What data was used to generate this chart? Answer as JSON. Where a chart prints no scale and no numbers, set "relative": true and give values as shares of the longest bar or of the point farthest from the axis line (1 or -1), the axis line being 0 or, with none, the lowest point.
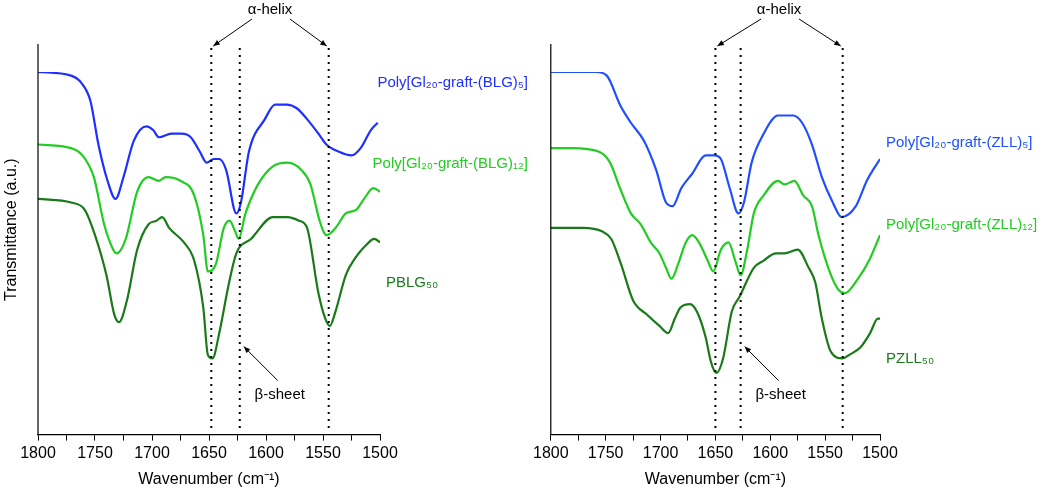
{
  "chart_data": [
    {
      "type": "line",
      "xlabel": "Wavenumber (cm⁻¹)",
      "ylabel": "Transmittance (a.u.)",
      "relative": true,
      "xlim": [
        1800,
        1500
      ],
      "xticks": [
        1800,
        {
          "value": 1775,
          "label": null
        },
        1750,
        {
          "value": 1725,
          "label": null
        },
        1700,
        {
          "value": 1675,
          "label": null
        },
        1650,
        {
          "value": 1625,
          "label": null
        },
        1600,
        {
          "value": 1575,
          "label": null
        },
        1550,
        {
          "value": 1525,
          "label": null
        },
        1500
      ],
      "grid": false,
      "legend": false,
      "marker": "none",
      "line_style": "solid",
      "tick_labels": "x",
      "ref_lines": [
        {
          "axis": "x",
          "value": 1648,
          "line_style": "dotted"
        },
        {
          "axis": "x",
          "value": 1623,
          "line_style": "dotted"
        },
        {
          "axis": "x",
          "value": 1545,
          "line_style": "dotted"
        }
      ],
      "annotations": [
        "α-helix",
        "β-sheet"
      ],
      "series": [
        {
          "name": "Poly[Gl₂₀-graft-(BLG)₅]",
          "color": "#1f2fff",
          "x": [
            1800,
            1771,
            1762,
            1754,
            1747,
            1739,
            1732,
            1725,
            1716,
            1705,
            1699,
            1694,
            1683,
            1674,
            1666,
            1658,
            1652,
            1646,
            1641,
            1635,
            1626,
            1622,
            1615,
            1601,
            1592,
            1582,
            1573,
            1564,
            1554,
            1547,
            1536,
            1525,
            1517,
            1508,
            1502
          ],
          "values": [
            1.0,
            0.99,
            0.97,
            0.92,
            0.8,
            0.7,
            0.65,
            0.71,
            0.81,
            0.85,
            0.84,
            0.82,
            0.83,
            0.83,
            0.82,
            0.78,
            0.75,
            0.76,
            0.76,
            0.73,
            0.61,
            0.64,
            0.78,
            0.87,
            0.91,
            0.91,
            0.9,
            0.87,
            0.83,
            0.8,
            0.78,
            0.77,
            0.79,
            0.84,
            0.86
          ]
        },
        {
          "name": "Poly[Gl₂₀-graft-(BLG)₁₂]",
          "color": "#22cc22",
          "x": [
            1800,
            1771,
            1761,
            1751,
            1742,
            1734,
            1731,
            1723,
            1713,
            1703,
            1694,
            1688,
            1675,
            1663,
            1655,
            1651,
            1644,
            1637,
            1632,
            1627,
            1624,
            1618,
            1607,
            1594,
            1581,
            1569,
            1561,
            1553,
            1547,
            1539,
            1530,
            1521,
            1514,
            1506,
            1500
          ],
          "values": [
            0.8,
            0.79,
            0.77,
            0.71,
            0.58,
            0.51,
            0.5,
            0.54,
            0.67,
            0.71,
            0.7,
            0.71,
            0.7,
            0.66,
            0.55,
            0.45,
            0.47,
            0.57,
            0.59,
            0.56,
            0.54,
            0.61,
            0.69,
            0.74,
            0.75,
            0.73,
            0.69,
            0.59,
            0.55,
            0.57,
            0.61,
            0.62,
            0.65,
            0.68,
            0.67
          ]
        },
        {
          "name": "PBLG₅₀",
          "color": "#1a7a1a",
          "x": [
            1800,
            1771,
            1759,
            1750,
            1740,
            1733,
            1729,
            1722,
            1713,
            1703,
            1696,
            1691,
            1685,
            1672,
            1663,
            1655,
            1651,
            1647,
            1641,
            1633,
            1626,
            1613,
            1594,
            1581,
            1571,
            1564,
            1554,
            1548,
            1544,
            1539,
            1530,
            1521,
            1513,
            1505,
            1500
          ],
          "values": [
            0.65,
            0.64,
            0.62,
            0.55,
            0.44,
            0.33,
            0.31,
            0.37,
            0.51,
            0.58,
            0.59,
            0.6,
            0.57,
            0.53,
            0.48,
            0.35,
            0.22,
            0.21,
            0.28,
            0.41,
            0.5,
            0.54,
            0.6,
            0.6,
            0.59,
            0.57,
            0.39,
            0.32,
            0.3,
            0.34,
            0.44,
            0.49,
            0.52,
            0.54,
            0.53
          ]
        }
      ]
    },
    {
      "type": "line",
      "xlabel": "Wavenumber (cm⁻¹)",
      "relative": true,
      "xlim": [
        1800,
        1500
      ],
      "xticks": [
        1800,
        {
          "value": 1775,
          "label": null
        },
        1750,
        {
          "value": 1725,
          "label": null
        },
        1700,
        {
          "value": 1675,
          "label": null
        },
        1650,
        {
          "value": 1625,
          "label": null
        },
        1600,
        {
          "value": 1575,
          "label": null
        },
        1550,
        {
          "value": 1525,
          "label": null
        },
        1500
      ],
      "grid": false,
      "legend": false,
      "marker": "none",
      "line_style": "solid",
      "tick_labels": "x",
      "ref_lines": [
        {
          "axis": "x",
          "value": 1650,
          "line_style": "dotted"
        },
        {
          "axis": "x",
          "value": 1627,
          "line_style": "dotted"
        },
        {
          "axis": "x",
          "value": 1534,
          "line_style": "dotted"
        }
      ],
      "annotations": [
        "α-helix",
        "β-sheet"
      ],
      "series": [
        {
          "name": "Poly[Gl₂₀-graft-(ZLL)₅]",
          "color": "#1f4fff",
          "x": [
            1800,
            1781,
            1759,
            1749,
            1737,
            1727,
            1715,
            1704,
            1695,
            1689,
            1681,
            1671,
            1659,
            1651,
            1645,
            1637,
            1629,
            1624,
            1617,
            1606,
            1593,
            1579,
            1571,
            1562,
            1553,
            1543,
            1535,
            1522,
            1512,
            1500
          ],
          "values": [
            1.0,
            1.0,
            1.0,
            0.99,
            0.91,
            0.86,
            0.81,
            0.73,
            0.64,
            0.63,
            0.68,
            0.72,
            0.77,
            0.77,
            0.76,
            0.68,
            0.61,
            0.64,
            0.75,
            0.83,
            0.88,
            0.88,
            0.86,
            0.8,
            0.71,
            0.64,
            0.6,
            0.63,
            0.7,
            0.76
          ]
        },
        {
          "name": "Poly[Gl₂₀-graft-(ZLL)₁₂]",
          "color": "#22cc22",
          "x": [
            1800,
            1781,
            1756,
            1746,
            1737,
            1727,
            1718,
            1709,
            1701,
            1695,
            1690,
            1684,
            1677,
            1671,
            1665,
            1657,
            1652,
            1645,
            1638,
            1632,
            1627,
            1621,
            1615,
            1606,
            1593,
            1587,
            1578,
            1570,
            1562,
            1556,
            1546,
            1538,
            1532,
            1520,
            1510,
            1500
          ],
          "values": [
            0.79,
            0.79,
            0.78,
            0.75,
            0.68,
            0.61,
            0.58,
            0.53,
            0.5,
            0.46,
            0.43,
            0.47,
            0.53,
            0.55,
            0.53,
            0.48,
            0.45,
            0.51,
            0.53,
            0.48,
            0.44,
            0.51,
            0.61,
            0.66,
            0.7,
            0.69,
            0.7,
            0.66,
            0.63,
            0.55,
            0.45,
            0.4,
            0.39,
            0.43,
            0.48,
            0.55
          ]
        },
        {
          "name": "PZLL₅₀",
          "color": "#1a7a1a",
          "x": [
            1800,
            1771,
            1753,
            1745,
            1736,
            1725,
            1712,
            1701,
            1693,
            1687,
            1682,
            1673,
            1667,
            1659,
            1654,
            1649,
            1643,
            1635,
            1628,
            1615,
            1606,
            1595,
            1587,
            1575,
            1565,
            1559,
            1553,
            1545,
            1534,
            1528,
            1518,
            1509,
            1502,
            1500
          ],
          "values": [
            0.57,
            0.57,
            0.56,
            0.54,
            0.47,
            0.37,
            0.33,
            0.3,
            0.28,
            0.32,
            0.35,
            0.36,
            0.34,
            0.27,
            0.2,
            0.17,
            0.21,
            0.34,
            0.38,
            0.46,
            0.48,
            0.5,
            0.5,
            0.51,
            0.46,
            0.42,
            0.32,
            0.23,
            0.21,
            0.22,
            0.24,
            0.28,
            0.32,
            0.32
          ]
        }
      ]
    }
  ]
}
